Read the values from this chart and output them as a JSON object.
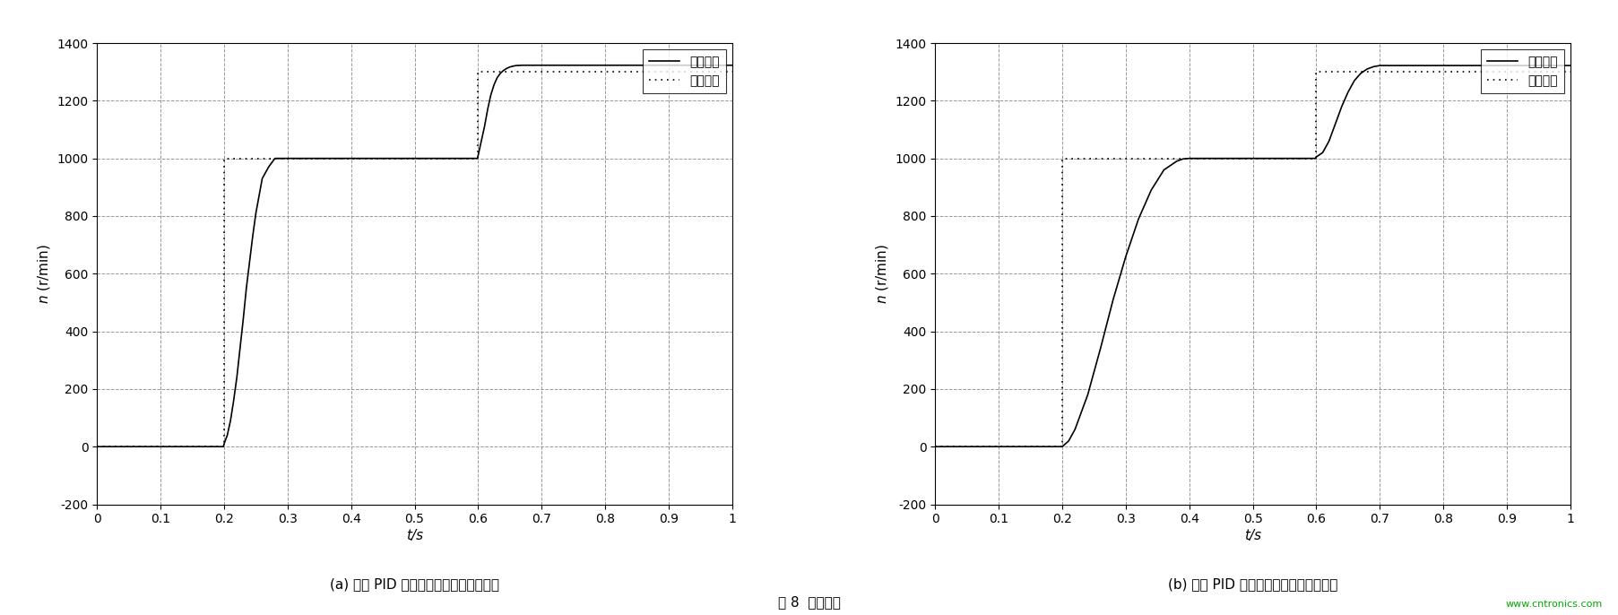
{
  "fig_width": 18.06,
  "fig_height": 6.86,
  "dpi": 100,
  "background_color": "#ffffff",
  "chart_a": {
    "subtitle": "(a) 常规 PID 控制下的系统跟踪特能曲线",
    "xlabel": "t/s",
    "ylabel": "n（r/min）",
    "ylabel_plain": "n (r/min)",
    "xlim": [
      0,
      1
    ],
    "ylim": [
      -200,
      1400
    ],
    "xticks": [
      0,
      0.1,
      0.2,
      0.3,
      0.4,
      0.5,
      0.6,
      0.7,
      0.8,
      0.9,
      1
    ],
    "yticks": [
      -200,
      0,
      200,
      400,
      600,
      800,
      1000,
      1200,
      1400
    ],
    "response_x": [
      0,
      0.199,
      0.2,
      0.205,
      0.21,
      0.215,
      0.22,
      0.225,
      0.23,
      0.235,
      0.24,
      0.245,
      0.25,
      0.255,
      0.26,
      0.27,
      0.28,
      0.3,
      0.4,
      0.5,
      0.599,
      0.6,
      0.605,
      0.61,
      0.615,
      0.62,
      0.625,
      0.63,
      0.635,
      0.64,
      0.645,
      0.65,
      0.655,
      0.66,
      0.67,
      0.68,
      0.7,
      0.8,
      0.9,
      1.0
    ],
    "response_y": [
      0,
      0,
      10,
      40,
      90,
      160,
      240,
      340,
      440,
      550,
      640,
      730,
      810,
      870,
      930,
      970,
      1000,
      1000,
      1000,
      1000,
      1000,
      1010,
      1060,
      1110,
      1170,
      1220,
      1255,
      1280,
      1295,
      1305,
      1312,
      1317,
      1320,
      1322,
      1323,
      1323,
      1323,
      1323,
      1323,
      1323
    ],
    "input_x": [
      0,
      0.2,
      0.2,
      0.6,
      0.6,
      1.0
    ],
    "input_y": [
      0,
      0,
      1000,
      1000,
      1300,
      1300
    ],
    "legend_labels": [
      "响应曲线",
      "输入信号"
    ],
    "response_color": "#000000",
    "input_color": "#000000",
    "response_linestyle": "-",
    "input_linestyle": ":"
  },
  "chart_b": {
    "subtitle": "(b) 模糊 PID 控制下的系统跟踪特能曲线",
    "xlabel": "t/s",
    "ylabel": "n（r/min）",
    "ylabel_plain": "n (r/min)",
    "xlim": [
      0,
      1
    ],
    "ylim": [
      -200,
      1400
    ],
    "xticks": [
      0,
      0.1,
      0.2,
      0.3,
      0.4,
      0.5,
      0.6,
      0.7,
      0.8,
      0.9,
      1
    ],
    "yticks": [
      -200,
      0,
      200,
      400,
      600,
      800,
      1000,
      1200,
      1400
    ],
    "response_x": [
      0,
      0.199,
      0.2,
      0.21,
      0.22,
      0.24,
      0.26,
      0.28,
      0.3,
      0.32,
      0.34,
      0.36,
      0.38,
      0.39,
      0.4,
      0.5,
      0.599,
      0.6,
      0.61,
      0.62,
      0.63,
      0.64,
      0.65,
      0.66,
      0.67,
      0.68,
      0.69,
      0.7,
      0.8,
      0.9,
      1.0
    ],
    "response_y": [
      0,
      0,
      0,
      20,
      60,
      180,
      340,
      510,
      660,
      790,
      890,
      960,
      990,
      998,
      1000,
      1000,
      1000,
      1005,
      1020,
      1060,
      1120,
      1180,
      1230,
      1270,
      1295,
      1310,
      1318,
      1322,
      1322,
      1322,
      1322
    ],
    "input_x": [
      0,
      0.2,
      0.2,
      0.6,
      0.6,
      1.0
    ],
    "input_y": [
      0,
      0,
      1000,
      1000,
      1300,
      1300
    ],
    "legend_labels": [
      "响应曲线",
      "输入信号"
    ],
    "response_color": "#000000",
    "input_color": "#000000",
    "response_linestyle": "-",
    "input_linestyle": ":"
  },
  "figure_caption": "图 8  实验结果",
  "watermark": "www.cntronics.com",
  "grid_color": "#999999",
  "grid_linestyle": "--",
  "grid_linewidth": 0.7,
  "legend_label_response": "响应曲线",
  "legend_label_input": "输入信号"
}
